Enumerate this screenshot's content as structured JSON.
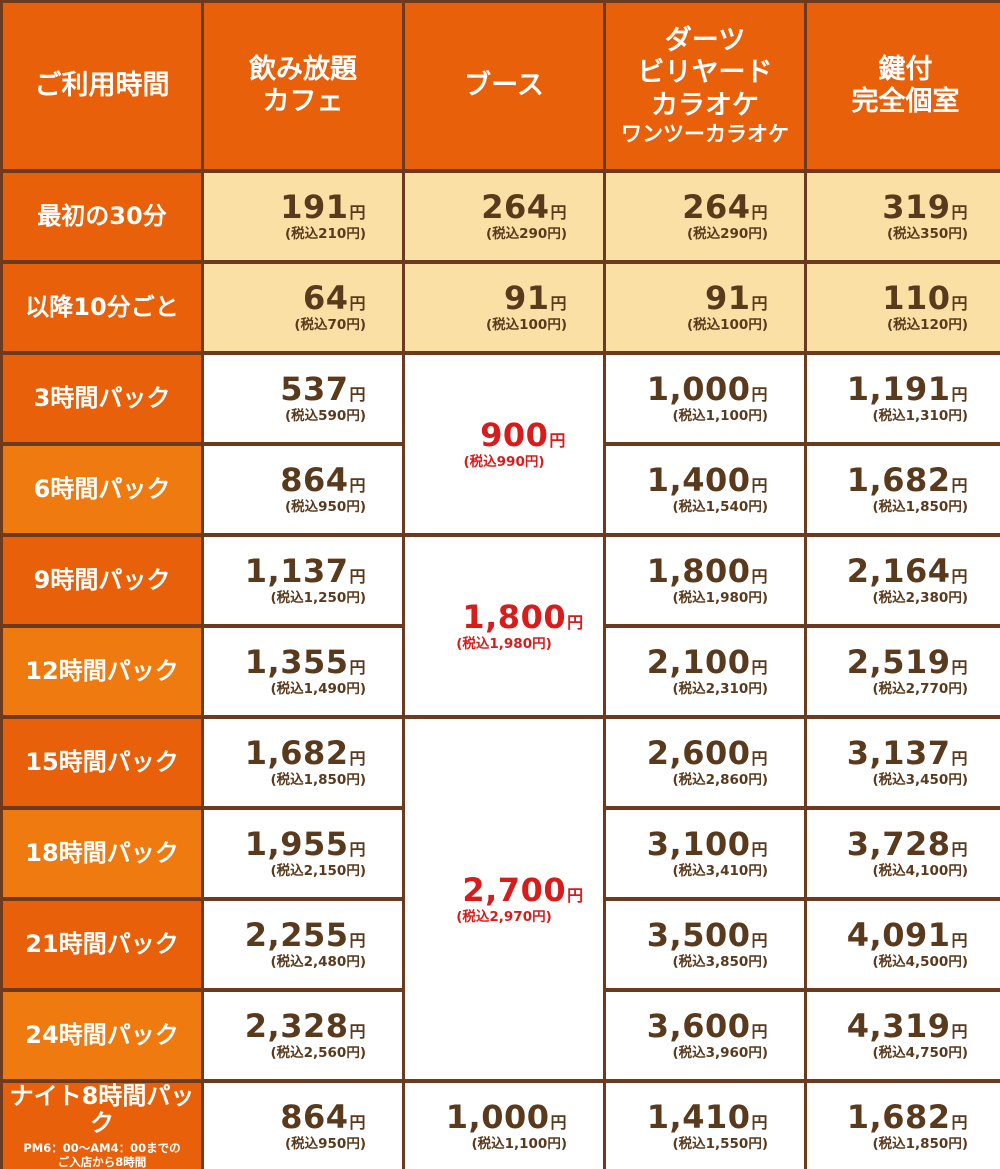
{
  "headers": {
    "time": "ご利用時間",
    "cafe": [
      "飲み放題",
      "カフェ"
    ],
    "booth": "ブース",
    "darts": [
      "ダーツ",
      "ビリヤード",
      "カラオケ",
      "ワンツーカラオケ"
    ],
    "room": [
      "鍵付",
      "完全個室"
    ]
  },
  "rows": [
    {
      "label": "最初の30分",
      "cafe": [
        "191",
        "(税込210円)"
      ],
      "booth": [
        "264",
        "(税込290円)"
      ],
      "darts": [
        "264",
        "(税込290円)"
      ],
      "room": [
        "319",
        "(税込350円)"
      ]
    },
    {
      "label": "以降10分ごと",
      "cafe": [
        "64",
        "(税込70円)"
      ],
      "booth": [
        "91",
        "(税込100円)"
      ],
      "darts": [
        "91",
        "(税込100円)"
      ],
      "room": [
        "110",
        "(税込120円)"
      ]
    },
    {
      "label": "3時間パック",
      "cafe": [
        "537",
        "(税込590円)"
      ],
      "darts": [
        "1,000",
        "(税込1,100円)"
      ],
      "room": [
        "1,191",
        "(税込1,310円)"
      ]
    },
    {
      "label": "6時間パック",
      "cafe": [
        "864",
        "(税込950円)"
      ],
      "darts": [
        "1,400",
        "(税込1,540円)"
      ],
      "room": [
        "1,682",
        "(税込1,850円)"
      ]
    },
    {
      "label": "9時間パック",
      "cafe": [
        "1,137",
        "(税込1,250円)"
      ],
      "darts": [
        "1,800",
        "(税込1,980円)"
      ],
      "room": [
        "2,164",
        "(税込2,380円)"
      ]
    },
    {
      "label": "12時間パック",
      "cafe": [
        "1,355",
        "(税込1,490円)"
      ],
      "darts": [
        "2,100",
        "(税込2,310円)"
      ],
      "room": [
        "2,519",
        "(税込2,770円)"
      ]
    },
    {
      "label": "15時間パック",
      "cafe": [
        "1,682",
        "(税込1,850円)"
      ],
      "darts": [
        "2,600",
        "(税込2,860円)"
      ],
      "room": [
        "3,137",
        "(税込3,450円)"
      ]
    },
    {
      "label": "18時間パック",
      "cafe": [
        "1,955",
        "(税込2,150円)"
      ],
      "darts": [
        "3,100",
        "(税込3,410円)"
      ],
      "room": [
        "3,728",
        "(税込4,100円)"
      ]
    },
    {
      "label": "21時間パック",
      "cafe": [
        "2,255",
        "(税込2,480円)"
      ],
      "darts": [
        "3,500",
        "(税込3,850円)"
      ],
      "room": [
        "4,091",
        "(税込4,500円)"
      ]
    },
    {
      "label": "24時間パック",
      "cafe": [
        "2,328",
        "(税込2,560円)"
      ],
      "darts": [
        "3,600",
        "(税込3,960円)"
      ],
      "room": [
        "4,319",
        "(税込4,750円)"
      ]
    },
    {
      "label": "ナイト8時間パック",
      "note": [
        "PM6：00～AM4：00までの",
        "ご入店から8時間"
      ],
      "cafe": [
        "864",
        "(税込950円)"
      ],
      "booth": [
        "1,000",
        "(税込1,100円)"
      ],
      "darts": [
        "1,410",
        "(税込1,550円)"
      ],
      "room": [
        "1,682",
        "(税込1,850円)"
      ]
    }
  ],
  "booth_packs": [
    [
      "900",
      "(税込990円)"
    ],
    [
      "1,800",
      "(税込1,980円)"
    ],
    [
      "2,700",
      "(税込2,970円)"
    ]
  ],
  "yen": "円",
  "colors": {
    "header": "#e8600a",
    "pale": "#fbe0a6",
    "price_text": "#5a3a1c",
    "booth_pack_text": "#d81c1c",
    "border": "#6b3a1f"
  }
}
